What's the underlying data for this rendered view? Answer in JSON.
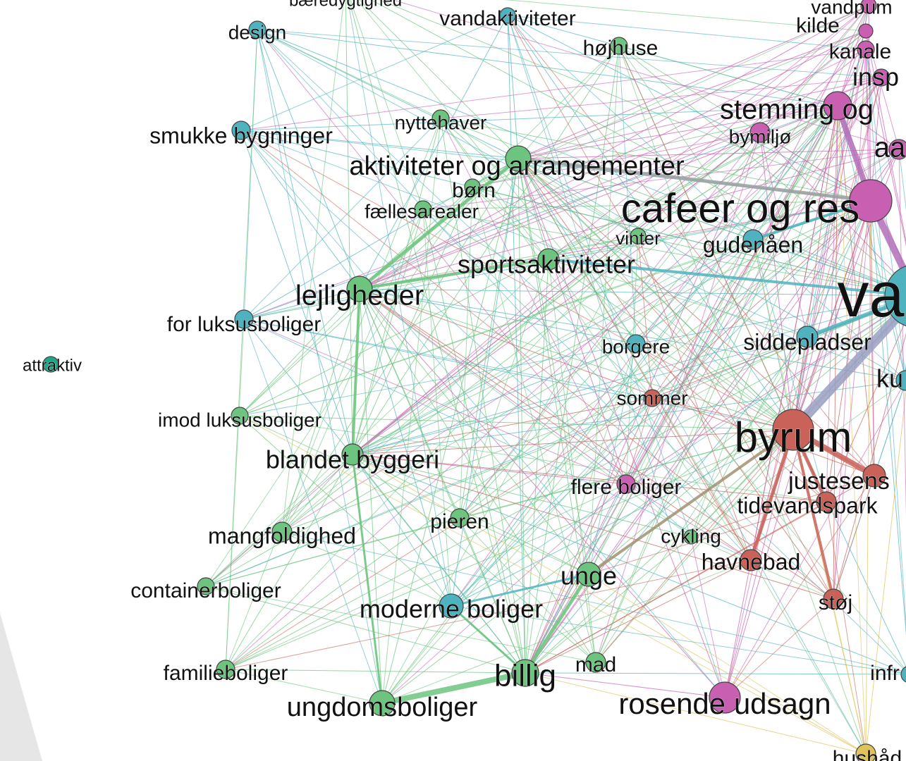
{
  "nodes": [
    {
      "label": "bæredygtighed"
    },
    {
      "label": "vandaktiviteter"
    },
    {
      "label": "design"
    },
    {
      "label": "højhuse"
    },
    {
      "label": "vandpum"
    },
    {
      "label": "kilde"
    },
    {
      "label": "kanale"
    },
    {
      "label": "insp"
    },
    {
      "label": "stemning og"
    },
    {
      "label": "bymiljø"
    },
    {
      "label": "aa"
    },
    {
      "label": "smukke bygninger"
    },
    {
      "label": "nyttehaver"
    },
    {
      "label": "aktiviteter og arrangementer"
    },
    {
      "label": "børn"
    },
    {
      "label": "fællesarealer"
    },
    {
      "label": "cafeer og res"
    },
    {
      "label": "vinter"
    },
    {
      "label": "gudenåen"
    },
    {
      "label": "sportsaktiviteter"
    },
    {
      "label": "va"
    },
    {
      "label": "lejligheder"
    },
    {
      "label": "for luksusboliger"
    },
    {
      "label": "borgere"
    },
    {
      "label": "siddepladser"
    },
    {
      "label": "attraktiv"
    },
    {
      "label": "ku"
    },
    {
      "label": "sommer"
    },
    {
      "label": "imod luksusboliger"
    },
    {
      "label": "byrum"
    },
    {
      "label": "blandet byggeri"
    },
    {
      "label": "justesens"
    },
    {
      "label": "flere boliger"
    },
    {
      "label": "tidevandspark"
    },
    {
      "label": "pieren"
    },
    {
      "label": "mangfoldighed"
    },
    {
      "label": "cykling"
    },
    {
      "label": "havnebad"
    },
    {
      "label": "unge"
    },
    {
      "label": "containerboliger"
    },
    {
      "label": "moderne boliger"
    },
    {
      "label": "støj"
    },
    {
      "label": "familieboliger"
    },
    {
      "label": "billig"
    },
    {
      "label": "mad"
    },
    {
      "label": "infr"
    },
    {
      "label": "rosende udsagn"
    },
    {
      "label": "ungdomsboliger"
    },
    {
      "label": "hushåd"
    }
  ]
}
